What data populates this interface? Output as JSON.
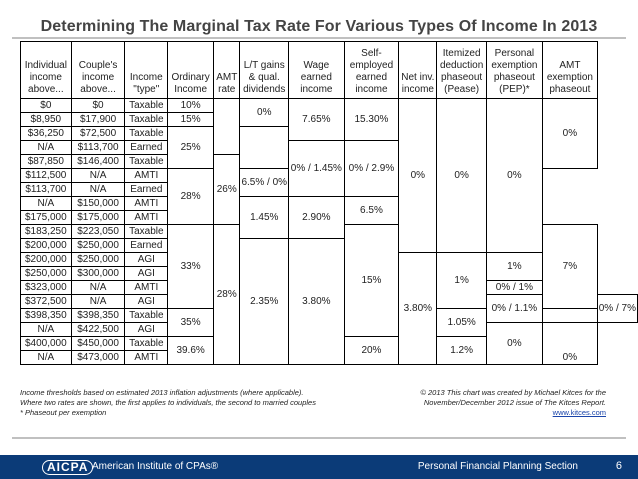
{
  "title": "Determining The Marginal Tax Rate For Various Types Of Income In 2013",
  "headers": [
    "Individual income above...",
    "Couple's income above...",
    "Income \"type\"",
    "Ordinary Income",
    "AMT rate",
    "L/T gains & qual. dividends",
    "Wage earned income",
    "Self-employed earned income",
    "Net inv. income",
    "Itemized deduction phaseout (Pease)",
    "Personal exemption phaseout (PEP)*",
    "AMT exemption phaseout"
  ],
  "rows": [
    [
      "$0",
      "$0",
      "Taxable"
    ],
    [
      "$8,950",
      "$17,900",
      "Taxable"
    ],
    [
      "$36,250",
      "$72,500",
      "Taxable"
    ],
    [
      "N/A",
      "$113,700",
      "Earned"
    ],
    [
      "$87,850",
      "$146,400",
      "Taxable"
    ],
    [
      "$112,500",
      "N/A",
      "AMTI"
    ],
    [
      "$113,700",
      "N/A",
      "Earned"
    ],
    [
      "N/A",
      "$150,000",
      "AMTI"
    ],
    [
      "$175,000",
      "$175,000",
      "AMTI"
    ],
    [
      "$183,250",
      "$223,050",
      "Taxable"
    ],
    [
      "$200,000",
      "$250,000",
      "Earned"
    ],
    [
      "$200,000",
      "$250,000",
      "AGI"
    ],
    [
      "$250,000",
      "$300,000",
      "AGI"
    ],
    [
      "$323,000",
      "N/A",
      "AMTI"
    ],
    [
      "$372,500",
      "N/A",
      "AGI"
    ],
    [
      "$398,350",
      "$398,350",
      "Taxable"
    ],
    [
      "N/A",
      "$422,500",
      "AGI"
    ],
    [
      "$400,000",
      "$450,000",
      "Taxable"
    ],
    [
      "N/A",
      "$473,000",
      "AMTI"
    ]
  ],
  "ordinary": [
    "10%",
    "15%",
    "25%",
    "28%",
    "33%",
    "35%",
    "39.6%"
  ],
  "amt": [
    "26%",
    "28%"
  ],
  "ltgains": [
    "0%",
    "15%",
    "20%"
  ],
  "wage": [
    "7.65%",
    "0% / 1.45%",
    "1.45%",
    "2.35%"
  ],
  "selfemp": [
    "15.30%",
    "0% / 2.9%",
    "2.90%",
    "3.80%"
  ],
  "netinv": [
    "0%",
    "3.80%"
  ],
  "pease": [
    "0%",
    "1%",
    "1.05%",
    "1.2%"
  ],
  "pep": [
    "0%",
    "1%",
    "0% / 1%",
    "0% / 1.1%",
    "0%"
  ],
  "amtex": [
    "0%",
    "6.5% / 0%",
    "6.5%",
    "7%",
    "0% / 7%",
    "0%"
  ],
  "notes": [
    "Income thresholds based on estimated 2013 inflation adjustments (where applicable).",
    "Where two rates are shown, the first applies to individuals, the second to married couples",
    "* Phaseout per exemption"
  ],
  "credit": [
    "© 2013  This chart was created by Michael Kitces for the",
    "November/December 2012 issue of The Kitces Report.",
    "www.kitces.com"
  ],
  "footer": {
    "logo": "AICPA",
    "org": "American Institute of CPAs®",
    "section": "Personal Financial Planning Section",
    "page": "6"
  }
}
